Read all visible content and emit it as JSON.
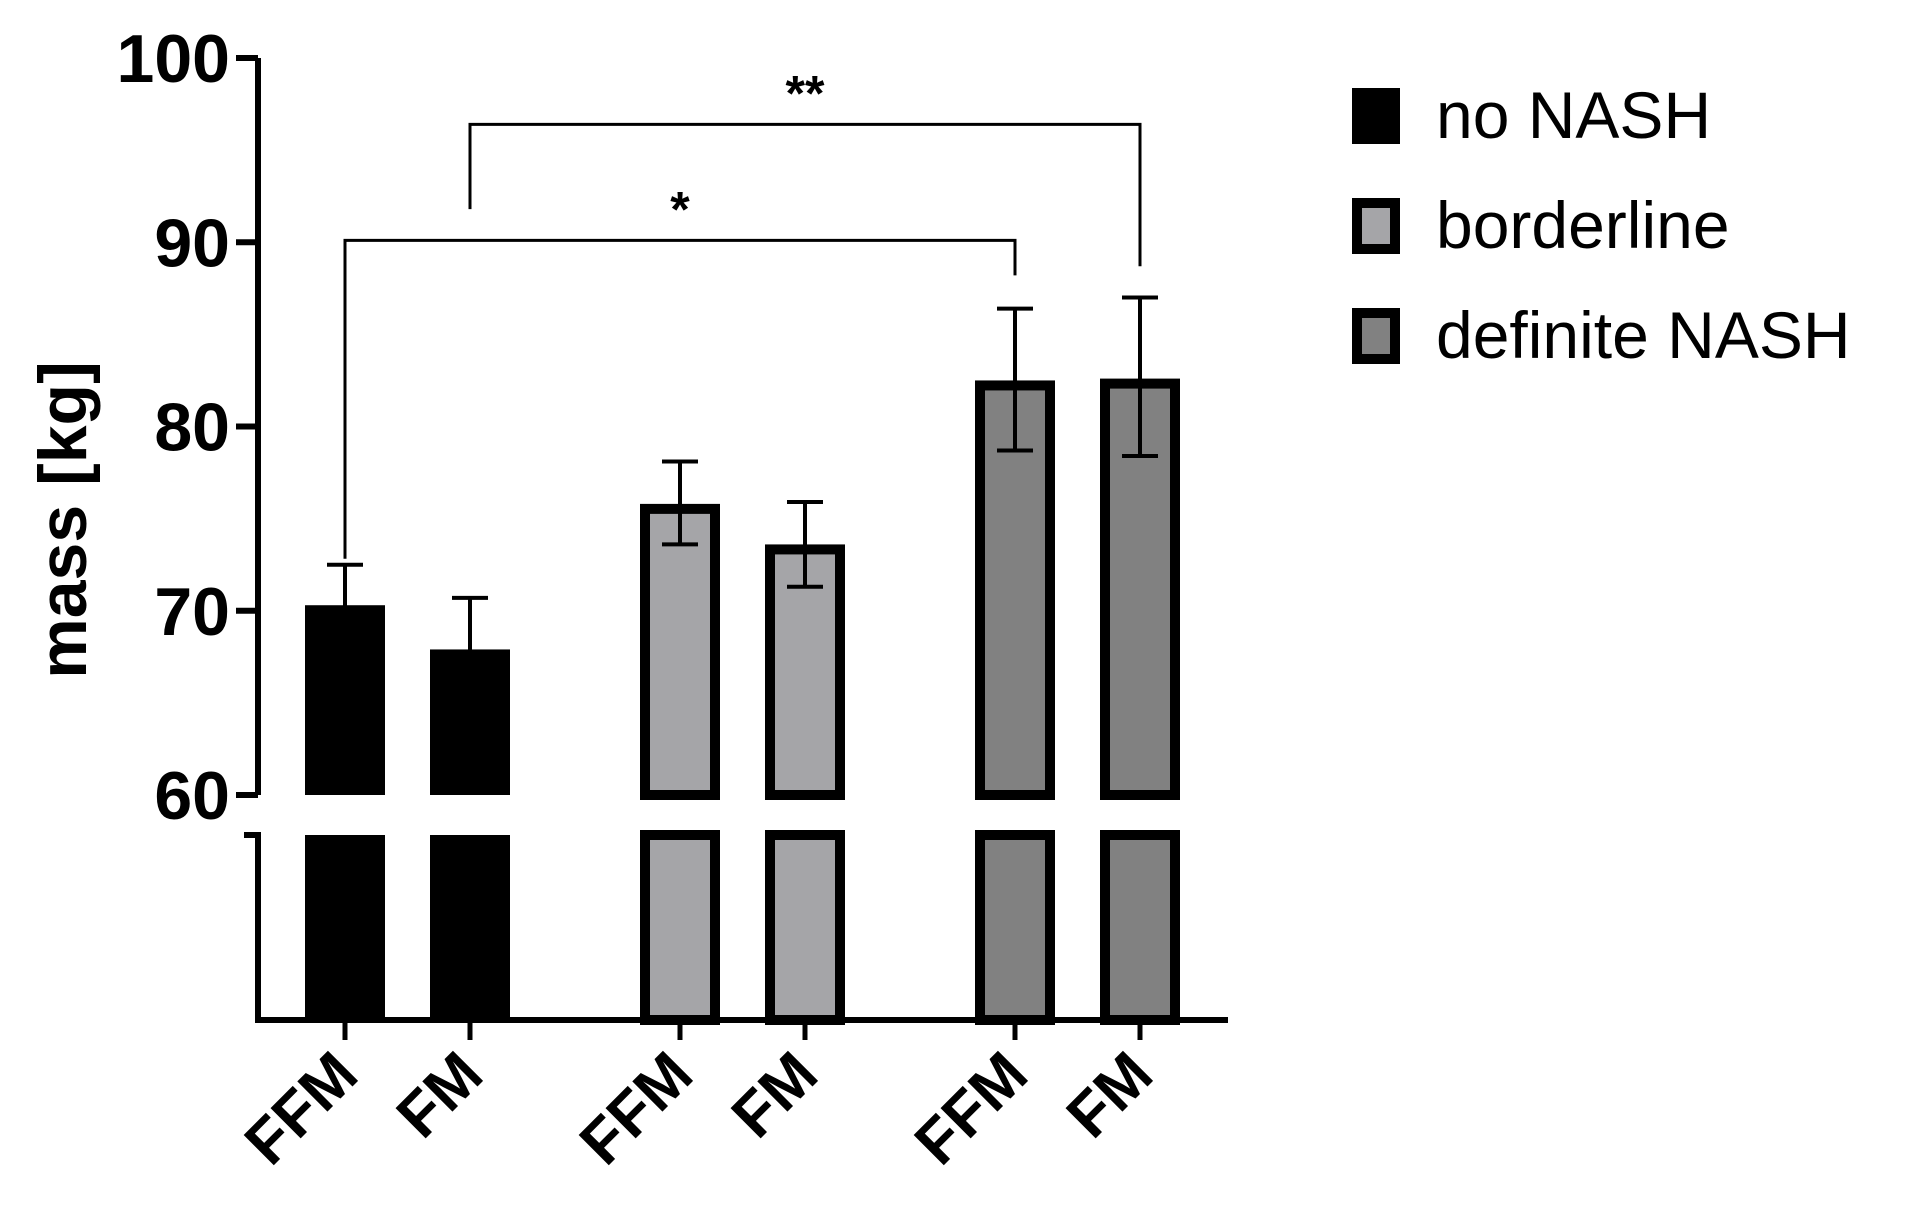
{
  "chart_data": {
    "type": "bar",
    "ylabel": "mass [kg]",
    "y_axis": {
      "ticks": [
        60,
        70,
        80,
        90,
        100
      ],
      "upper_range": [
        60,
        100
      ],
      "broken_axis": true,
      "lower_segment_shown_without_ticks": true
    },
    "bars": [
      {
        "group": "no NASH",
        "label": "FFM",
        "value": 70.3,
        "err_upper": 72.5,
        "err_lower": 68.5
      },
      {
        "group": "no NASH",
        "label": "FM",
        "value": 67.9,
        "err_upper": 70.7,
        "err_lower": 65.5
      },
      {
        "group": "borderline",
        "label": "FFM",
        "value": 75.8,
        "err_upper": 78.1,
        "err_lower": 73.6
      },
      {
        "group": "borderline",
        "label": "FM",
        "value": 73.6,
        "err_upper": 75.9,
        "err_lower": 71.3
      },
      {
        "group": "definite NASH",
        "label": "FFM",
        "value": 82.5,
        "err_upper": 86.4,
        "err_lower": 78.7
      },
      {
        "group": "definite NASH",
        "label": "FM",
        "value": 82.6,
        "err_upper": 87.0,
        "err_lower": 78.4
      }
    ],
    "series": [
      {
        "name": "no NASH",
        "fill": "#000000"
      },
      {
        "name": "borderline",
        "fill": "#a5a5a8"
      },
      {
        "name": "definite NASH",
        "fill": "#818181"
      }
    ],
    "significance": [
      {
        "from_bar": 0,
        "to_bar": 4,
        "label": "*",
        "bracket_y": 90.1
      },
      {
        "from_bar": 1,
        "to_bar": 5,
        "label": "**",
        "bracket_y": 96.4
      }
    ],
    "legend_position": "top-right",
    "grid": false
  }
}
